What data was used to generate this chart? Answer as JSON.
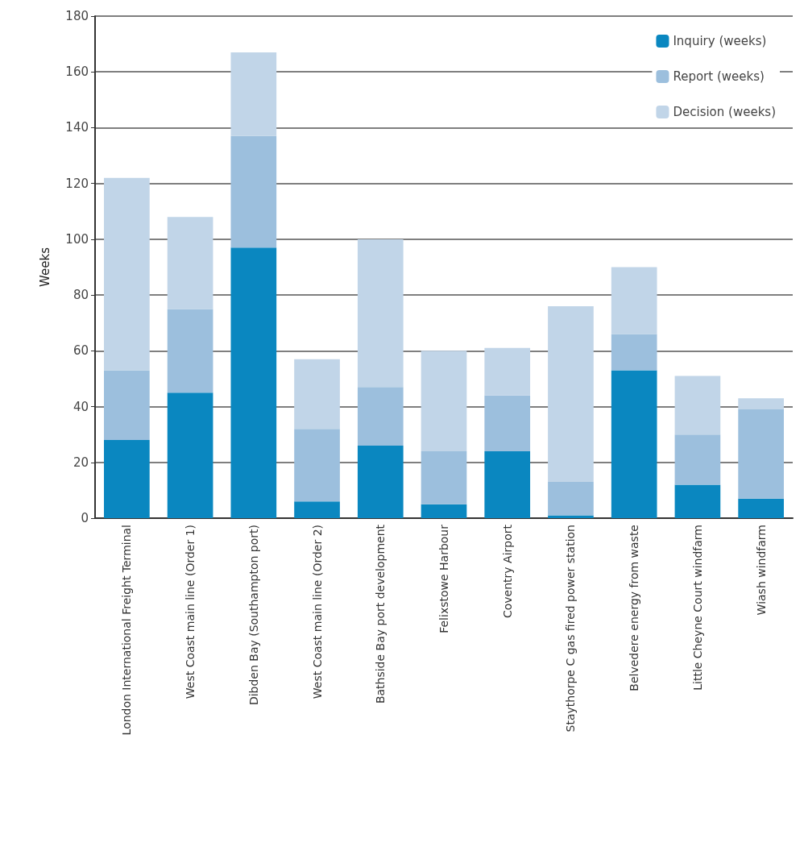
{
  "chart_data": {
    "type": "bar",
    "stacked": true,
    "ylabel": "Weeks",
    "categories": [
      "London International Freight Terminal",
      "West Coast main line (Order 1)",
      "Dibden Bay (Southampton port)",
      "West Coast main line (Order 2)",
      "Bathside Bay port development",
      "Felixstowe Harbour",
      "Coventry Airport",
      "Staythorpe C gas fired power station",
      "Belvedere energy from waste",
      "Little Cheyne Court windfarm",
      "Wiash windfarm"
    ],
    "series": [
      {
        "name": "Inquiry (weeks)",
        "color": "#0a87c0",
        "values": [
          28,
          45,
          97,
          6,
          26,
          5,
          24,
          1,
          53,
          12,
          7
        ]
      },
      {
        "name": "Report (weeks)",
        "color": "#9cbfdd",
        "values": [
          25,
          30,
          40,
          26,
          21,
          19,
          20,
          12,
          13,
          18,
          32
        ]
      },
      {
        "name": "Decision (weeks)",
        "color": "#c1d5e8",
        "values": [
          69,
          33,
          30,
          25,
          53,
          36,
          17,
          63,
          24,
          21,
          4
        ]
      }
    ],
    "ylim": [
      0,
      180
    ],
    "yticks": [
      0,
      20,
      40,
      60,
      80,
      100,
      120,
      140,
      160,
      180
    ],
    "grid": "y",
    "legend": "top right"
  }
}
